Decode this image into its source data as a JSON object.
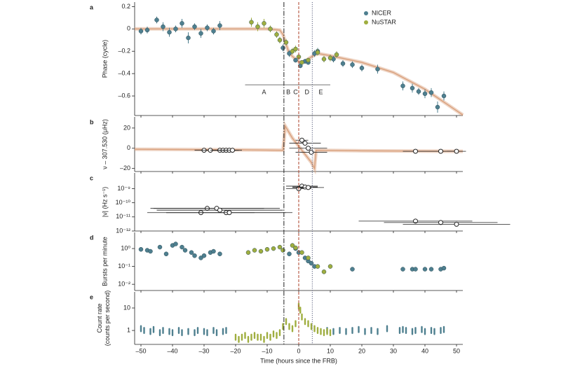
{
  "chart_data": [
    {
      "type": "scatter",
      "panel": "a",
      "ylabel": "Phase (cycle)",
      "xlim": [
        -52,
        52
      ],
      "ylim": [
        -0.775,
        0.24
      ],
      "yticks": [
        0.2,
        0,
        {
          "value": -0.2,
          "label": "–0.2"
        },
        {
          "value": -0.4,
          "label": "–0.4"
        },
        {
          "value": -0.6,
          "label": "–0.6"
        }
      ],
      "legend": "upper right",
      "vlines": [
        {
          "x": -4.7,
          "color": "#333333",
          "dash": "dashdot"
        },
        {
          "x": 0,
          "color": "#b5533c",
          "dash": "dashed"
        },
        {
          "x": 4.3,
          "color": "#6a6f8a",
          "dash": "dotted"
        }
      ],
      "segment_line": {
        "y": -0.5,
        "x": [
          -17,
          10
        ]
      },
      "segments": [
        {
          "label": "A",
          "x": -11
        },
        {
          "label": "B",
          "x": -3.3
        },
        {
          "label": "C",
          "x": -1
        },
        {
          "label": "D",
          "x": 2.6
        },
        {
          "label": "E",
          "x": 7
        }
      ],
      "series": [
        {
          "style": "line",
          "color": "#d9a07c",
          "x": [
            -52,
            -30,
            -10,
            -6,
            -5,
            -4,
            -3,
            -1,
            0.5,
            2,
            4,
            6,
            10,
            20,
            30,
            40,
            52
          ],
          "y": [
            0,
            0,
            0,
            -0.01,
            -0.05,
            -0.14,
            -0.22,
            -0.27,
            -0.3,
            -0.29,
            -0.25,
            -0.22,
            -0.24,
            -0.3,
            -0.39,
            -0.54,
            -0.77
          ]
        },
        {
          "name": "NICER",
          "color": "#4e7f8f",
          "x": [
            -50,
            -48,
            -45,
            -43,
            -41,
            -39,
            -37,
            -35,
            -33,
            -31,
            -29,
            -27,
            -25,
            -5,
            -3,
            -1,
            0.5,
            2,
            3,
            5,
            6,
            11,
            14,
            17,
            20,
            25,
            33,
            36,
            38,
            40,
            42,
            44,
            46
          ],
          "y": [
            -0.02,
            -0.01,
            0.08,
            0.02,
            -0.03,
            0,
            0.05,
            -0.08,
            0.02,
            -0.04,
            0.01,
            -0.02,
            0.03,
            -0.17,
            -0.22,
            -0.28,
            -0.33,
            -0.29,
            -0.3,
            -0.22,
            -0.2,
            -0.27,
            -0.31,
            -0.32,
            -0.35,
            -0.36,
            -0.51,
            -0.53,
            -0.56,
            -0.58,
            -0.57,
            -0.7,
            -0.6
          ],
          "yerr": [
            0.03,
            0.03,
            0.03,
            0.04,
            0.04,
            0.03,
            0.04,
            0.05,
            0.03,
            0.04,
            0.03,
            0.03,
            0.04,
            0.03,
            0.03,
            0.02,
            0.02,
            0.02,
            0.02,
            0.03,
            0.03,
            0.03,
            0.03,
            0.03,
            0.03,
            0.04,
            0.04,
            0.04,
            0.03,
            0.04,
            0.04,
            0.05,
            0.04
          ]
        },
        {
          "name": "NuSTAR",
          "color": "#9fae3f",
          "x": [
            -15,
            -13,
            -11,
            -9,
            -7,
            -6,
            -4,
            -2,
            -1,
            0,
            1,
            3,
            6,
            8,
            10,
            12
          ],
          "y": [
            0.06,
            0.02,
            0.05,
            0,
            -0.05,
            -0.1,
            -0.12,
            -0.2,
            -0.18,
            -0.25,
            -0.3,
            -0.28,
            -0.21,
            -0.27,
            -0.26,
            -0.23
          ],
          "yerr": [
            0.04,
            0.04,
            0.04,
            0.03,
            0.03,
            0.03,
            0.03,
            0.03,
            0.03,
            0.02,
            0.02,
            0.02,
            0.03,
            0.03,
            0.03,
            0.03
          ]
        }
      ]
    },
    {
      "type": "scatter",
      "panel": "b",
      "ylabel": "ν – 307.530 (μHz)",
      "xlim": [
        -52,
        52
      ],
      "ylim": [
        -23,
        31
      ],
      "yticks": [
        20,
        0,
        {
          "value": -20,
          "label": "–20"
        }
      ],
      "series": [
        {
          "style": "line",
          "color": "#d9a07c",
          "x": [
            -52,
            -20,
            -5,
            -4.6,
            -4.3,
            -2,
            0,
            2,
            4,
            5,
            5.5,
            20,
            52
          ],
          "y": [
            -1,
            -1.5,
            -2,
            10,
            22,
            10,
            2,
            -6,
            -14,
            -20,
            -2,
            -2.5,
            -3
          ]
        },
        {
          "color": "#222222",
          "open": true,
          "x": [
            -30,
            -28,
            -25,
            -24,
            -23,
            -22,
            -21,
            1,
            2,
            3,
            4,
            37,
            45,
            50
          ],
          "y": [
            -2,
            -2,
            -2,
            -2,
            -2,
            -2,
            -2,
            8,
            5,
            0,
            -4,
            -3,
            -3,
            -3
          ],
          "xerr": [
            3,
            3,
            3,
            3,
            3,
            3,
            3,
            2,
            5,
            6,
            5,
            4,
            4,
            3
          ]
        }
      ]
    },
    {
      "type": "scatter",
      "panel": "c",
      "ylabel": "|ν̇| (Hz s⁻¹)",
      "xlim": [
        -52,
        52
      ],
      "ylim": [
        1e-12,
        1.3e-08
      ],
      "log_y": true,
      "yticks": [
        {
          "value": 1e-09,
          "label": "10⁻⁹"
        },
        {
          "value": 1e-10,
          "label": "10⁻¹⁰"
        },
        {
          "value": 1e-11,
          "label": "10⁻¹¹"
        },
        {
          "value": 1e-12,
          "label": "10⁻¹²"
        }
      ],
      "series": [
        {
          "color": "#222222",
          "open": true,
          "x": [
            -31,
            -29,
            -26,
            -25,
            -23,
            -22,
            0,
            1,
            2,
            3,
            37,
            45,
            50
          ],
          "y": [
            2e-11,
            4e-11,
            4e-11,
            3e-11,
            2e-11,
            2e-11,
            1e-09,
            1.5e-09,
            1.3e-09,
            1.2e-09,
            5e-12,
            4e-12,
            3e-12
          ],
          "xerr": [
            17,
            18,
            20,
            20,
            19,
            20,
            4,
            5,
            4,
            5,
            18,
            18,
            17
          ]
        }
      ]
    },
    {
      "type": "scatter",
      "panel": "d",
      "ylabel": "Bursts per minute",
      "xlim": [
        -52,
        52
      ],
      "ylim": [
        0.0045,
        8
      ],
      "log_y": true,
      "yticks": [
        {
          "value": 1,
          "label": "10⁰"
        },
        {
          "value": 0.1,
          "label": "10⁻¹"
        },
        {
          "value": 0.01,
          "label": "10⁻²"
        }
      ],
      "series": [
        {
          "color": "#4e7f8f",
          "x": [
            -50,
            -48,
            -47,
            -44,
            -42,
            -40,
            -39,
            -37,
            -36,
            -34,
            -33,
            -31,
            -30,
            -28,
            -27,
            -25,
            -3,
            -1,
            0,
            2,
            3,
            4,
            5,
            17,
            33,
            36,
            37,
            40,
            42,
            45,
            46
          ],
          "y": [
            0.9,
            0.8,
            0.7,
            1.2,
            0.5,
            1.5,
            1.8,
            1.2,
            0.8,
            0.6,
            0.4,
            0.3,
            0.4,
            0.6,
            0.7,
            0.5,
            0.5,
            1,
            0.6,
            0.3,
            0.2,
            0.15,
            0.1,
            0.07,
            0.07,
            0.07,
            0.07,
            0.07,
            0.07,
            0.07,
            0.08
          ]
        },
        {
          "color": "#9fae3f",
          "x": [
            -16,
            -14,
            -12,
            -10,
            -8,
            -6,
            -5,
            -2,
            -1,
            1,
            3,
            6,
            8,
            10
          ],
          "y": [
            0.6,
            0.8,
            0.7,
            0.9,
            1,
            1.2,
            0.8,
            1.5,
            1.1,
            0.6,
            0.3,
            0.1,
            0.05,
            0.1
          ]
        }
      ]
    },
    {
      "type": "scatter",
      "panel": "e",
      "ylabel": [
        "Count rate",
        "(counts per second)"
      ],
      "xlabel": "Time (hours since the FRB)",
      "xlim": [
        -52,
        52
      ],
      "ylim": [
        0.24,
        52
      ],
      "log_y": true,
      "yticks": [
        10,
        1
      ],
      "xticks": [
        {
          "value": -50,
          "label": "–50"
        },
        {
          "value": -40,
          "label": "–40"
        },
        {
          "value": -30,
          "label": "–30"
        },
        {
          "value": -20,
          "label": "–20"
        },
        {
          "value": -10,
          "label": "–10"
        },
        0,
        10,
        20,
        30,
        40,
        50
      ],
      "series": [
        {
          "color": "#4e7f8f",
          "x": [
            -50,
            -49,
            -47,
            -46,
            -44,
            -43,
            -41,
            -40,
            -38,
            -37,
            -35,
            -33,
            -32,
            -30,
            -29,
            -27,
            -26,
            -24,
            -23,
            9,
            11,
            13,
            15,
            17,
            19,
            21,
            23,
            25,
            28,
            32,
            33,
            34,
            36,
            37,
            39,
            40,
            42,
            43,
            45,
            46
          ],
          "y": [
            1.2,
            1,
            0.9,
            1.1,
            0.8,
            1,
            0.9,
            0.8,
            1,
            0.8,
            0.9,
            0.8,
            1,
            0.9,
            0.8,
            1,
            0.8,
            0.9,
            1,
            1,
            0.9,
            1,
            0.9,
            1,
            1.1,
            0.9,
            1,
            0.9,
            1.2,
            1,
            1.1,
            1,
            0.9,
            1,
            1.1,
            0.9,
            1,
            0.9,
            1,
            1.1
          ]
        },
        {
          "color": "#9fae3f",
          "x": [
            -20,
            -19,
            -18,
            -17,
            -16,
            -15,
            -14,
            -13,
            -12,
            -11,
            -10,
            -9,
            -8,
            -7,
            -6,
            -5,
            -4,
            -3,
            -2,
            -1,
            0,
            0.5,
            1,
            2,
            3,
            4,
            5,
            6,
            7,
            8,
            9,
            10
          ],
          "y": [
            0.5,
            0.4,
            0.5,
            0.6,
            0.4,
            0.5,
            0.6,
            0.5,
            0.5,
            0.4,
            0.6,
            0.5,
            0.7,
            0.6,
            0.8,
            1.5,
            2.5,
            1.5,
            1.2,
            2,
            12,
            8,
            4,
            2.5,
            2,
            1.5,
            1.2,
            1,
            0.9,
            0.8,
            0.9,
            0.8
          ]
        }
      ]
    }
  ]
}
